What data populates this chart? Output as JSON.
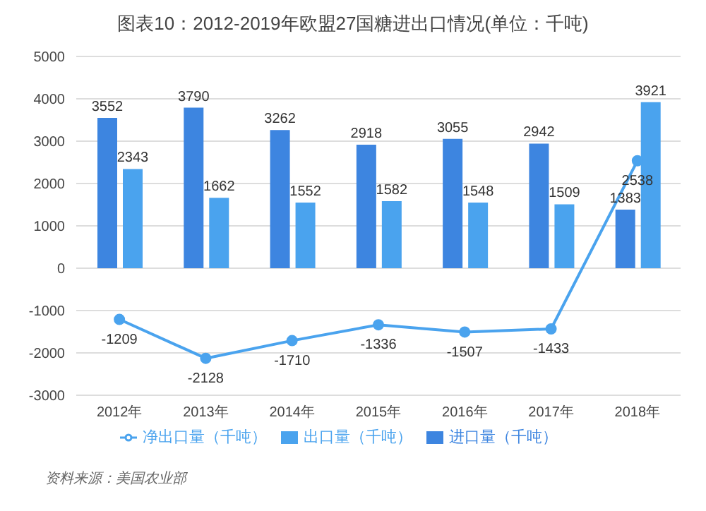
{
  "chart_data": {
    "type": "bar",
    "title": "图表10：2012-2019年欧盟27国糖进出口情况(单位：千吨)",
    "categories": [
      "2012年",
      "2013年",
      "2014年",
      "2015年",
      "2016年",
      "2017年",
      "2018年"
    ],
    "series": [
      {
        "name": "进口量（千吨）",
        "color": "#3d85e0",
        "values": [
          3552,
          3790,
          3262,
          2918,
          3055,
          2942,
          1383
        ]
      },
      {
        "name": "出口量（千吨）",
        "color": "#4aa3ee",
        "values": [
          2343,
          1662,
          1552,
          1582,
          1548,
          1509,
          3921
        ]
      },
      {
        "name": "净出口量（千吨）",
        "type": "line",
        "color": "#4aa3ee",
        "values": [
          -1209,
          -2128,
          -1710,
          -1336,
          -1507,
          -1433,
          2538
        ]
      }
    ],
    "ylim": [
      -3000,
      5000
    ],
    "yticks": [
      -3000,
      -2000,
      -1000,
      0,
      1000,
      2000,
      3000,
      4000,
      5000
    ],
    "grid": "y",
    "legend": "bottom",
    "marker": "circle",
    "data_labels": true,
    "annotations": [
      "资料来源：美国农业部"
    ]
  }
}
